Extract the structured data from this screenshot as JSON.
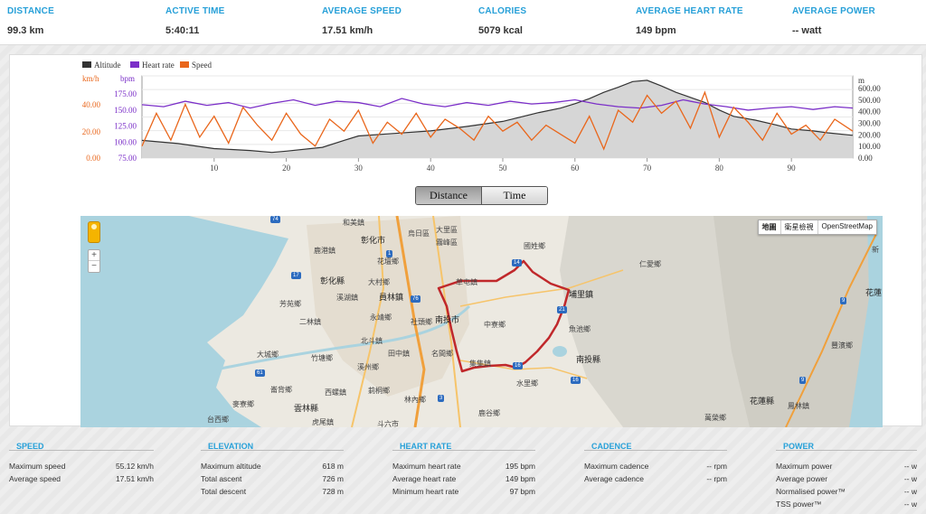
{
  "summary": [
    {
      "label": "DISTANCE",
      "value": "99.3 km"
    },
    {
      "label": "ACTIVE TIME",
      "value": "5:40:11"
    },
    {
      "label": "AVERAGE SPEED",
      "value": "17.51 km/h"
    },
    {
      "label": "CALORIES",
      "value": "5079 kcal"
    },
    {
      "label": "AVERAGE HEART RATE",
      "value": "149 bpm"
    },
    {
      "label": "AVERAGE POWER",
      "value": "-- watt"
    }
  ],
  "chart_data": {
    "type": "line",
    "legend": [
      "Altitude",
      "Heart rate",
      "Speed"
    ],
    "colors": {
      "altitude": "#333333",
      "altitude_fill": "#d6d6d6",
      "heart_rate": "#7b2fc8",
      "speed": "#e9661b"
    },
    "left_axis_speed": {
      "unit": "km/h",
      "ticks": [
        "40.00",
        "20.00",
        "0.00"
      ]
    },
    "left_axis_hr": {
      "unit": "bpm",
      "ticks": [
        "175.00",
        "150.00",
        "125.00",
        "100.00",
        "75.00"
      ]
    },
    "right_axis_altitude": {
      "unit": "m",
      "ticks": [
        "600.00",
        "500.00",
        "400.00",
        "300.00",
        "200.00",
        "100.00",
        "0.00"
      ]
    },
    "x_ticks": [
      "10",
      "20",
      "30",
      "40",
      "50",
      "60",
      "70",
      "80",
      "90"
    ],
    "xlim": [
      0,
      98.5
    ],
    "altitude_series": {
      "x": [
        0,
        5,
        10,
        15,
        18,
        20,
        25,
        28,
        30,
        35,
        40,
        45,
        50,
        55,
        58,
        60,
        62,
        64,
        66,
        68,
        70,
        72,
        74,
        76,
        78,
        80,
        82,
        85,
        88,
        90,
        93,
        95,
        98.5
      ],
      "y": [
        140,
        115,
        75,
        60,
        45,
        55,
        85,
        140,
        175,
        195,
        215,
        250,
        290,
        360,
        395,
        430,
        470,
        520,
        560,
        605,
        615,
        570,
        520,
        480,
        440,
        380,
        330,
        300,
        260,
        230,
        215,
        200,
        180
      ]
    },
    "heart_rate_series": {
      "x": [
        0,
        3,
        6,
        9,
        12,
        15,
        18,
        21,
        24,
        27,
        30,
        33,
        36,
        39,
        42,
        45,
        48,
        51,
        54,
        57,
        60,
        63,
        66,
        69,
        72,
        75,
        78,
        81,
        84,
        87,
        90,
        93,
        96,
        98.5
      ],
      "y": [
        153,
        150,
        158,
        152,
        156,
        148,
        155,
        160,
        152,
        158,
        156,
        150,
        162,
        154,
        150,
        156,
        152,
        158,
        154,
        156,
        160,
        154,
        150,
        148,
        152,
        160,
        154,
        150,
        145,
        148,
        150,
        146,
        150,
        148
      ]
    },
    "speed_series": {
      "x": [
        0,
        2,
        4,
        6,
        8,
        10,
        12,
        14,
        16,
        18,
        20,
        22,
        24,
        26,
        28,
        30,
        32,
        34,
        36,
        38,
        40,
        42,
        44,
        46,
        48,
        50,
        52,
        54,
        56,
        58,
        60,
        62,
        64,
        66,
        68,
        70,
        72,
        74,
        76,
        78,
        80,
        82,
        84,
        86,
        88,
        90,
        92,
        94,
        96,
        98.5
      ],
      "y": [
        8,
        30,
        12,
        36,
        14,
        28,
        10,
        34,
        22,
        12,
        30,
        16,
        8,
        26,
        18,
        32,
        10,
        24,
        16,
        30,
        14,
        26,
        20,
        12,
        28,
        18,
        24,
        12,
        22,
        16,
        10,
        28,
        6,
        32,
        24,
        42,
        30,
        38,
        20,
        44,
        14,
        34,
        24,
        12,
        30,
        16,
        22,
        12,
        26,
        18
      ]
    }
  },
  "toggle": {
    "distance": "Distance",
    "time": "Time"
  },
  "map": {
    "buttons": [
      "地圖",
      "衛星檢視",
      "OpenStreetMap"
    ],
    "zoom_in": "+",
    "zoom_out": "−",
    "labels": [
      "和美鎮",
      "彰化市",
      "大里區",
      "霧峰區",
      "烏日區",
      "國姓鄉",
      "鹿港鎮",
      "花壇鄉",
      "彰化縣",
      "大村鄉",
      "芳苑鄉",
      "溪湖鎮",
      "員林鎮",
      "草屯鎮",
      "埔里鎮",
      "仁愛鄉",
      "二林鎮",
      "永靖鄉",
      "社頭鄉",
      "南投市",
      "中寮鄉",
      "魚池鄉",
      "北斗鎮",
      "田中鎮",
      "名間鄉",
      "集集鎮",
      "南投縣",
      "大城鄉",
      "竹塘鄉",
      "溪州鄉",
      "水里鄉",
      "崙背鄉",
      "西螺鎮",
      "莿桐鄉",
      "林內鄉",
      "麥寮鄉",
      "雲林縣",
      "鹿谷鄉",
      "虎尾鎮",
      "台西鄉",
      "斗六市",
      "花蓮縣",
      "萬榮鄉",
      "豐濱鄉",
      "鳳林鎮",
      "花蓮",
      "新"
    ]
  },
  "stats": {
    "speed": {
      "title": "SPEED",
      "rows": [
        [
          "Maximum speed",
          "55.12 km/h"
        ],
        [
          "Average speed",
          "17.51 km/h"
        ]
      ]
    },
    "elevation": {
      "title": "ELEVATION",
      "rows": [
        [
          "Maximum altitude",
          "618 m"
        ],
        [
          "Total ascent",
          "726 m"
        ],
        [
          "Total descent",
          "728 m"
        ]
      ]
    },
    "heart_rate": {
      "title": "HEART RATE",
      "rows": [
        [
          "Maximum heart rate",
          "195 bpm"
        ],
        [
          "Average heart rate",
          "149 bpm"
        ],
        [
          "Minimum heart rate",
          "97 bpm"
        ]
      ]
    },
    "cadence": {
      "title": "CADENCE",
      "rows": [
        [
          "Maximum cadence",
          "-- rpm"
        ],
        [
          "Average cadence",
          "-- rpm"
        ]
      ]
    },
    "power": {
      "title": "POWER",
      "rows": [
        [
          "Maximum power",
          "-- w"
        ],
        [
          "Average power",
          "-- w"
        ],
        [
          "Normalised power™",
          "-- w"
        ],
        [
          "TSS power™",
          "-- w"
        ]
      ]
    }
  }
}
